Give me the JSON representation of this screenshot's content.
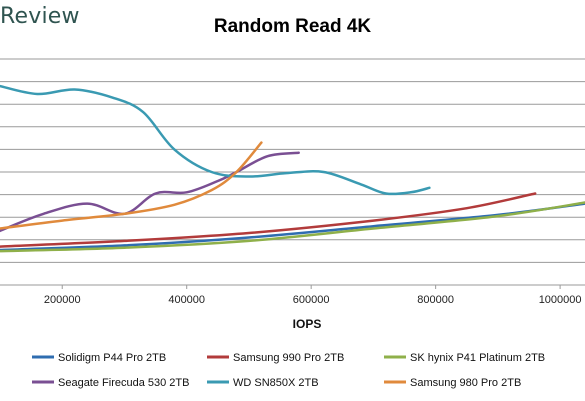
{
  "brand": "Review",
  "chart_data": {
    "type": "line",
    "title": "Random Read 4K",
    "xlabel": "IOPS",
    "ylabel": "",
    "xlim": [
      100000,
      1040000
    ],
    "ylim": [
      0,
      10
    ],
    "x_ticks": [
      200000,
      400000,
      600000,
      800000,
      1000000
    ],
    "x_tick_labels": [
      "200000",
      "400000",
      "600000",
      "800000",
      "1000000"
    ],
    "grid": true,
    "legend": "bottom",
    "series": [
      {
        "name": "Solidigm P44 Pro 2TB",
        "color": "#2f6db0",
        "points": [
          [
            100000,
            1.55
          ],
          [
            300000,
            1.75
          ],
          [
            500000,
            2.1
          ],
          [
            700000,
            2.6
          ],
          [
            900000,
            3.1
          ],
          [
            1040000,
            3.6
          ]
        ]
      },
      {
        "name": "Samsung 990 Pro 2TB",
        "color": "#b23b3b",
        "points": [
          [
            100000,
            1.7
          ],
          [
            300000,
            1.95
          ],
          [
            500000,
            2.3
          ],
          [
            700000,
            2.85
          ],
          [
            850000,
            3.4
          ],
          [
            960000,
            4.05
          ]
        ]
      },
      {
        "name": "SK hynix P41 Platinum 2TB",
        "color": "#8fb04a",
        "points": [
          [
            100000,
            1.5
          ],
          [
            300000,
            1.65
          ],
          [
            500000,
            1.95
          ],
          [
            700000,
            2.5
          ],
          [
            900000,
            3.05
          ],
          [
            1040000,
            3.65
          ]
        ]
      },
      {
        "name": "Seagate Firecuda 530 2TB",
        "color": "#7a4f93",
        "points": [
          [
            100000,
            2.4
          ],
          [
            170000,
            3.15
          ],
          [
            240000,
            3.6
          ],
          [
            300000,
            3.15
          ],
          [
            350000,
            4.05
          ],
          [
            400000,
            4.1
          ],
          [
            450000,
            4.6
          ],
          [
            480000,
            5.0
          ],
          [
            530000,
            5.7
          ],
          [
            580000,
            5.85
          ]
        ]
      },
      {
        "name": "WD SN850X 2TB",
        "color": "#3a9ab2",
        "points": [
          [
            100000,
            8.8
          ],
          [
            160000,
            8.45
          ],
          [
            220000,
            8.65
          ],
          [
            280000,
            8.3
          ],
          [
            330000,
            7.65
          ],
          [
            380000,
            6.0
          ],
          [
            440000,
            5.0
          ],
          [
            500000,
            4.8
          ],
          [
            560000,
            4.95
          ],
          [
            620000,
            5.0
          ],
          [
            680000,
            4.45
          ],
          [
            720000,
            4.05
          ],
          [
            760000,
            4.1
          ],
          [
            790000,
            4.3
          ]
        ]
      },
      {
        "name": "Samsung 980 Pro 2TB",
        "color": "#e08a3c",
        "points": [
          [
            100000,
            2.5
          ],
          [
            200000,
            2.85
          ],
          [
            300000,
            3.15
          ],
          [
            380000,
            3.55
          ],
          [
            440000,
            4.2
          ],
          [
            480000,
            5.0
          ],
          [
            520000,
            6.3
          ]
        ]
      }
    ]
  }
}
